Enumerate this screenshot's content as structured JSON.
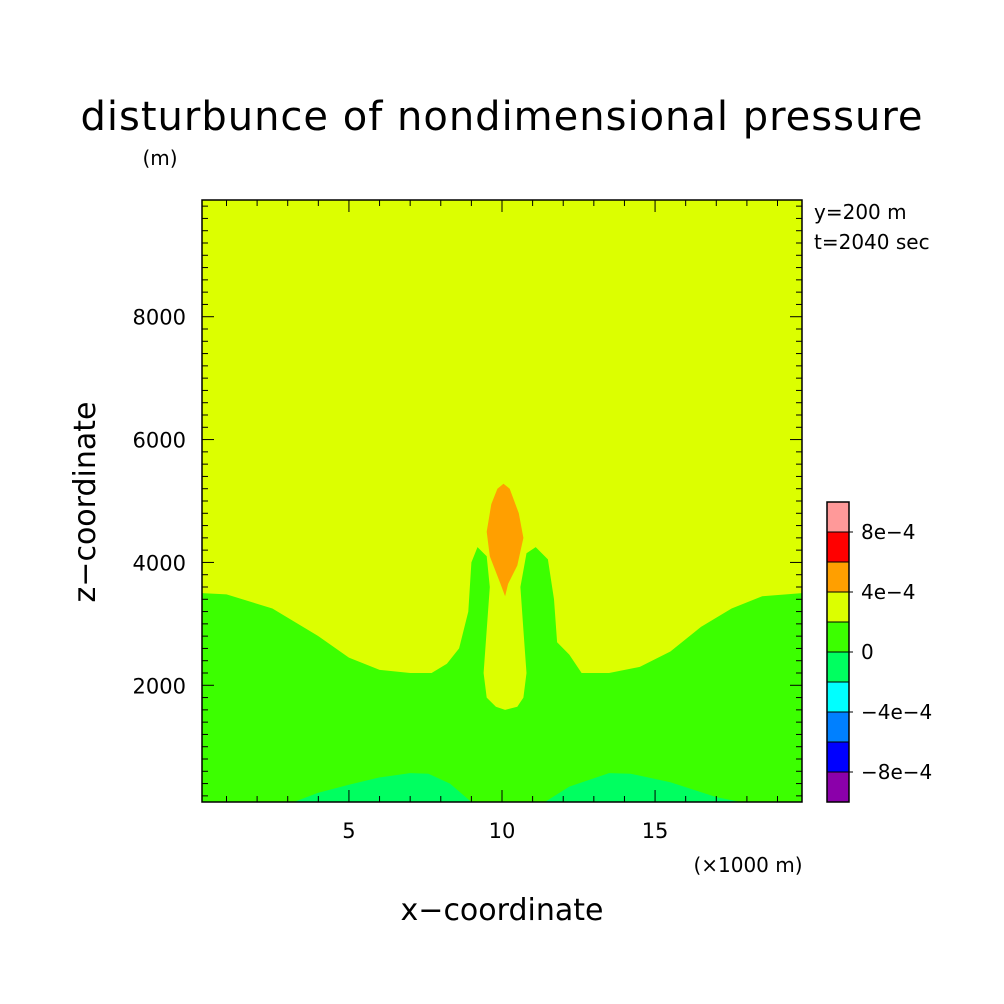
{
  "chart_data": {
    "type": "heatmap",
    "title": "disturbunce of nondimensional pressure",
    "xlabel": "x−coordinate",
    "ylabel": "z−coordinate",
    "x_unit": "(×1000 m)",
    "y_unit": "(m)",
    "annotations": [
      "y=200 m",
      "t=2040 sec"
    ],
    "xlim": [
      0.2,
      19.8
    ],
    "ylim": [
      100,
      9900
    ],
    "x_ticks": [
      {
        "value": 5,
        "label": "5"
      },
      {
        "value": 10,
        "label": "10"
      },
      {
        "value": 15,
        "label": "15"
      }
    ],
    "y_ticks": [
      {
        "value": 2000,
        "label": "2000"
      },
      {
        "value": 4000,
        "label": "4000"
      },
      {
        "value": 6000,
        "label": "6000"
      },
      {
        "value": 8000,
        "label": "8000"
      }
    ],
    "background_level_color": "#dcff00",
    "regions": [
      {
        "level": "0 to 4e-4",
        "color": "#3cff00",
        "points": [
          [
            0.2,
            100
          ],
          [
            0.2,
            3500
          ],
          [
            1,
            3480
          ],
          [
            2.5,
            3250
          ],
          [
            4,
            2800
          ],
          [
            5,
            2450
          ],
          [
            6,
            2250
          ],
          [
            7,
            2200
          ],
          [
            7.7,
            2200
          ],
          [
            8.2,
            2350
          ],
          [
            8.6,
            2600
          ],
          [
            8.9,
            3200
          ],
          [
            9,
            4000
          ],
          [
            9.2,
            4250
          ],
          [
            9.5,
            4100
          ],
          [
            9.6,
            3600
          ],
          [
            9.5,
            2900
          ],
          [
            9.4,
            2200
          ],
          [
            9.5,
            1800
          ],
          [
            9.8,
            1650
          ],
          [
            10.1,
            1600
          ],
          [
            10.5,
            1650
          ],
          [
            10.7,
            1800
          ],
          [
            10.8,
            2200
          ],
          [
            10.7,
            2900
          ],
          [
            10.6,
            3600
          ],
          [
            10.8,
            4150
          ],
          [
            11.1,
            4250
          ],
          [
            11.5,
            4050
          ],
          [
            11.7,
            3400
          ],
          [
            11.8,
            2700
          ],
          [
            12.2,
            2500
          ],
          [
            12.6,
            2200
          ],
          [
            13.5,
            2200
          ],
          [
            14.5,
            2300
          ],
          [
            15.5,
            2550
          ],
          [
            16.5,
            2950
          ],
          [
            17.5,
            3250
          ],
          [
            18.5,
            3450
          ],
          [
            19.8,
            3500
          ],
          [
            19.8,
            100
          ]
        ]
      },
      {
        "level": "-4e-4 to 0",
        "color": "#00ff60",
        "points": [
          [
            3.2,
            100
          ],
          [
            4,
            250
          ],
          [
            5,
            380
          ],
          [
            6,
            500
          ],
          [
            7,
            570
          ],
          [
            7.6,
            560
          ],
          [
            8.3,
            400
          ],
          [
            9,
            100
          ]
        ]
      },
      {
        "level": "-4e-4 to 0",
        "color": "#00ff60",
        "points": [
          [
            11.4,
            100
          ],
          [
            12.2,
            350
          ],
          [
            13.5,
            570
          ],
          [
            14.2,
            560
          ],
          [
            15.5,
            420
          ],
          [
            17,
            180
          ],
          [
            17.8,
            100
          ]
        ]
      },
      {
        "level": "4e-4 to 8e-4",
        "color": "#ff9f00",
        "points": [
          [
            10.1,
            3450
          ],
          [
            9.95,
            3650
          ],
          [
            9.6,
            4100
          ],
          [
            9.5,
            4500
          ],
          [
            9.65,
            4950
          ],
          [
            9.85,
            5200
          ],
          [
            10.05,
            5280
          ],
          [
            10.25,
            5200
          ],
          [
            10.55,
            4800
          ],
          [
            10.7,
            4400
          ],
          [
            10.5,
            3950
          ],
          [
            10.2,
            3650
          ]
        ]
      }
    ],
    "colorbar": {
      "colors": [
        "#8b00aa",
        "#0000ff",
        "#0080ff",
        "#00ffff",
        "#00ff60",
        "#3cff00",
        "#dcff00",
        "#ff9f00",
        "#ff0000",
        "#ff9999"
      ],
      "labels": [
        {
          "label": "−8e−4",
          "boundary": 1
        },
        {
          "label": "−4e−4",
          "boundary": 3
        },
        {
          "label": "0",
          "boundary": 5
        },
        {
          "label": "4e−4",
          "boundary": 7
        },
        {
          "label": "8e−4",
          "boundary": 9
        }
      ]
    }
  }
}
